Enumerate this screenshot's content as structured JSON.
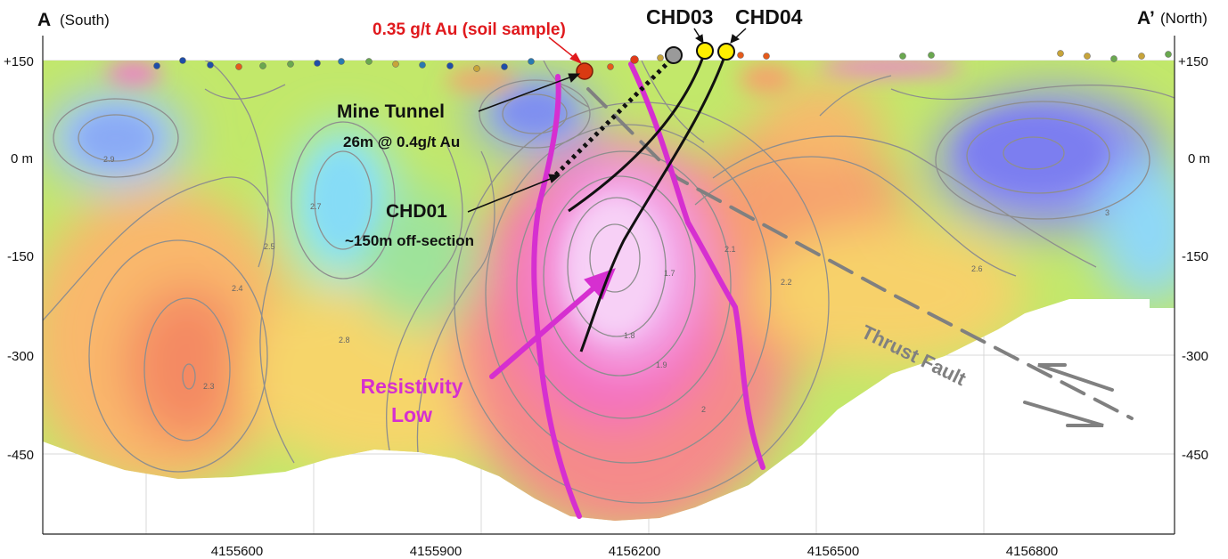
{
  "section_ends": {
    "left_letter": "A",
    "left_direction": "(South)",
    "right_letter": "A’",
    "right_direction": "(North)"
  },
  "elevation_axis": {
    "ticks": [
      "+150",
      "0 m",
      "-150",
      "-300",
      "-450"
    ]
  },
  "northing_axis": {
    "ticks": [
      "4155600",
      "4155900",
      "4156200",
      "4156500",
      "4156800"
    ]
  },
  "annotations": {
    "soil_sample": "0.35 g/t Au (soil sample)",
    "hole_chd03": "CHD03",
    "hole_chd04": "CHD04",
    "mine_tunnel_title": "Mine Tunnel",
    "mine_tunnel_grade": "26m @ 0.4g/t Au",
    "hole_chd01": "CHD01",
    "chd01_note": "~150m off-section",
    "resistivity_low_line1": "Resistivity",
    "resistivity_low_line2": "Low",
    "thrust_fault": "Thrust Fault"
  },
  "contour_values": [
    "2.9",
    "2.7",
    "2.5",
    "2.4",
    "2.3",
    "2.2",
    "2.1",
    "2",
    "1.9",
    "1.8",
    "1.7",
    "2.6",
    "2.8",
    "3"
  ],
  "colors": {
    "soil_sample_text": "#e0191d",
    "resistivity_low": "#d62fd0",
    "fault": "#808080",
    "drillhole_marker": "#ffee00"
  }
}
